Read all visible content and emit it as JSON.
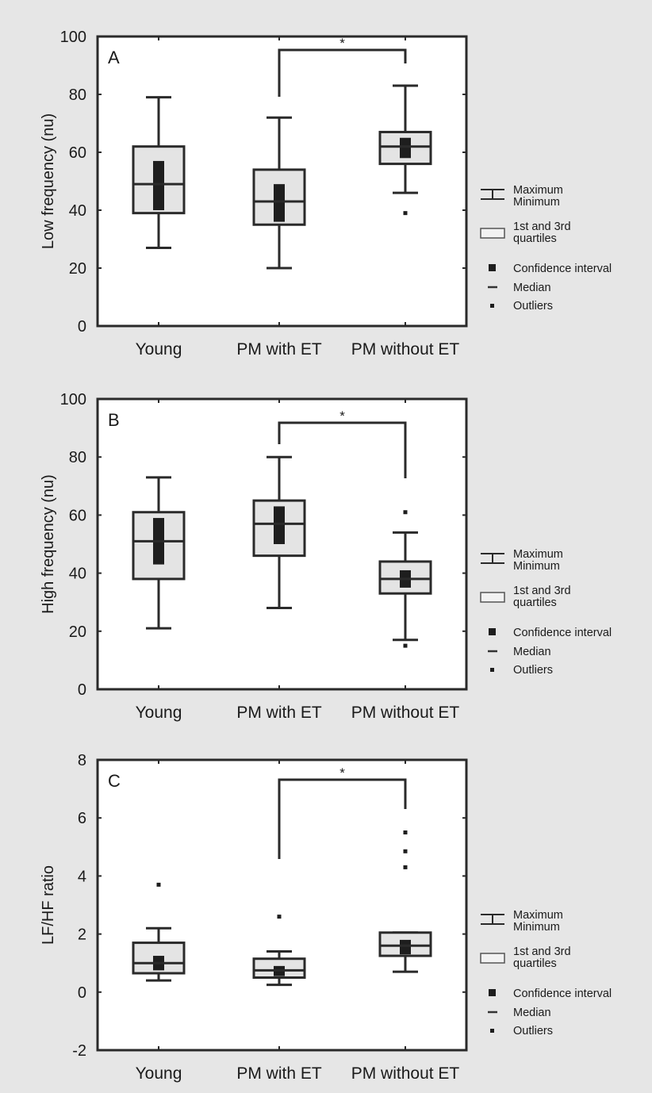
{
  "chart_data": [
    {
      "type": "box",
      "panel_label": "A",
      "ylabel": "Low frequency (nu)",
      "ylim": [
        0,
        100
      ],
      "yticks": [
        0,
        20,
        40,
        60,
        80,
        100
      ],
      "categories": [
        "Young",
        "PM with ET",
        "PM without ET"
      ],
      "boxes": [
        {
          "min": 27,
          "q1": 39,
          "median": 49,
          "q3": 62,
          "max": 79,
          "ci": [
            40,
            57
          ],
          "outliers": []
        },
        {
          "min": 20,
          "q1": 35,
          "median": 43,
          "q3": 54,
          "max": 72,
          "ci": [
            36,
            49
          ],
          "outliers": []
        },
        {
          "min": 46,
          "q1": 56,
          "median": 62,
          "q3": 67,
          "max": 83,
          "ci": [
            58,
            65
          ],
          "outliers": [
            39
          ]
        }
      ],
      "significance": {
        "label": "*",
        "from": "PM with ET",
        "to": "PM without ET"
      },
      "legend": [
        "Maximum",
        "Minimum",
        "1st and 3rd",
        "quartiles",
        "Confidence interval",
        "Median",
        "Outliers"
      ]
    },
    {
      "type": "box",
      "panel_label": "B",
      "ylabel": "High frequency (nu)",
      "ylim": [
        0,
        100
      ],
      "yticks": [
        0,
        20,
        40,
        60,
        80,
        100
      ],
      "categories": [
        "Young",
        "PM with ET",
        "PM without ET"
      ],
      "boxes": [
        {
          "min": 21,
          "q1": 38,
          "median": 51,
          "q3": 61,
          "max": 73,
          "ci": [
            43,
            59
          ],
          "outliers": []
        },
        {
          "min": 28,
          "q1": 46,
          "median": 57,
          "q3": 65,
          "max": 80,
          "ci": [
            50,
            63
          ],
          "outliers": []
        },
        {
          "min": 17,
          "q1": 33,
          "median": 38,
          "q3": 44,
          "max": 54,
          "ci": [
            35,
            41
          ],
          "outliers": [
            61,
            15
          ]
        }
      ],
      "significance": {
        "label": "*",
        "from": "PM with ET",
        "to": "PM without ET"
      },
      "legend": [
        "Maximum",
        "Minimum",
        "1st and 3rd",
        "quartiles",
        "Confidence interval",
        "Median",
        "Outliers"
      ]
    },
    {
      "type": "box",
      "panel_label": "C",
      "ylabel": "LF/HF ratio",
      "ylim": [
        -2,
        8
      ],
      "yticks": [
        -2,
        0,
        2,
        4,
        6,
        8
      ],
      "categories": [
        "Young",
        "PM with ET",
        "PM without ET"
      ],
      "boxes": [
        {
          "min": 0.4,
          "q1": 0.65,
          "median": 1.0,
          "q3": 1.7,
          "max": 2.2,
          "ci": [
            0.75,
            1.25
          ],
          "outliers": [
            3.7
          ]
        },
        {
          "min": 0.25,
          "q1": 0.5,
          "median": 0.75,
          "q3": 1.15,
          "max": 1.4,
          "ci": [
            0.55,
            0.9
          ],
          "outliers": [
            2.6
          ]
        },
        {
          "min": 0.7,
          "q1": 1.25,
          "median": 1.6,
          "q3": 2.05,
          "max": 2.05,
          "ci": [
            1.3,
            1.8
          ],
          "outliers": [
            4.3,
            4.85,
            5.5
          ]
        }
      ],
      "significance": {
        "label": "*",
        "from": "PM with ET",
        "to": "PM without ET"
      },
      "legend": [
        "Maximum",
        "Minimum",
        "1st and 3rd",
        "quartiles",
        "Confidence interval",
        "Median",
        "Outliers"
      ]
    }
  ]
}
